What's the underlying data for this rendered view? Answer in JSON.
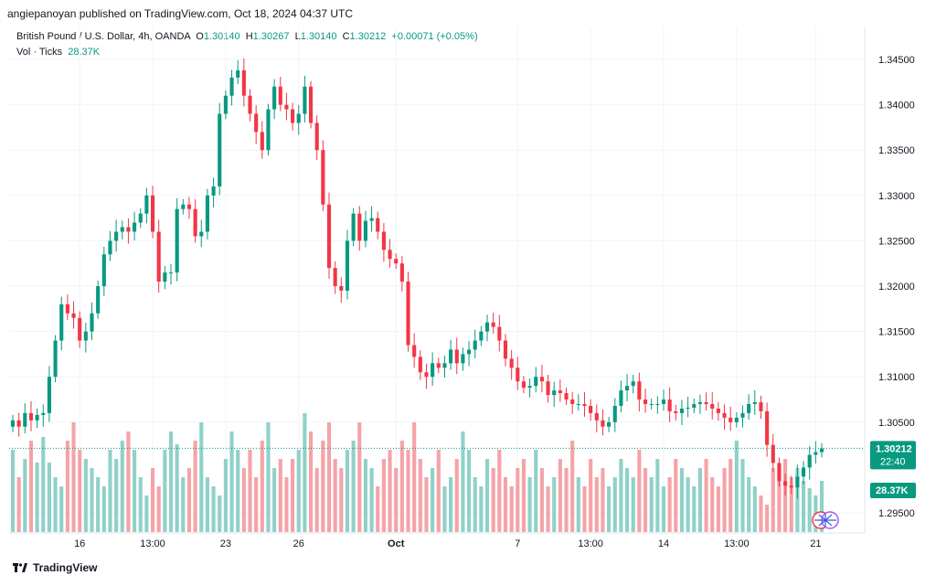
{
  "header": {
    "publisher_line": "angiepanoyan published on TradingView.com, Oct 18, 2024 04:37 UTC"
  },
  "legend": {
    "symbol": "British Pound / U.S. Dollar, 4h, OANDA",
    "o_label": "O",
    "o_value": "1.30140",
    "h_label": "H",
    "h_value": "1.30267",
    "l_label": "L",
    "l_value": "1.30140",
    "c_label": "C",
    "c_value": "1.30212",
    "change": "+0.00071 (+0.05%)",
    "vol_label": "Vol · Ticks",
    "vol_value": "28.37K"
  },
  "colors": {
    "up": "#089981",
    "down": "#f23645",
    "up_vol": "#8fd1c9",
    "down_vol": "#f5a3a8",
    "grid": "#f0f3fa"
  },
  "chart_data": {
    "type": "candlestick",
    "title": "British Pound / U.S. Dollar, 4h, OANDA",
    "ylim": [
      1.2925,
      1.3475
    ],
    "y_ticks": [
      "1.34500",
      "1.34000",
      "1.33500",
      "1.33000",
      "1.32500",
      "1.32000",
      "1.31500",
      "1.31000",
      "1.30500",
      "1.29500"
    ],
    "y_tick_values": [
      1.345,
      1.34,
      1.335,
      1.33,
      1.325,
      1.32,
      1.315,
      1.31,
      1.305,
      1.295
    ],
    "x_ticks": [
      "16",
      "13:00",
      "23",
      "26",
      "Oct",
      "7",
      "13:00",
      "14",
      "13:00",
      "21"
    ],
    "x_tick_bars": [
      11,
      23,
      35,
      47,
      63,
      83,
      95,
      107,
      119,
      132
    ],
    "price_label": "1.30212",
    "countdown": "22:40",
    "volume_label": "28.37K",
    "closes": [
      1.3052,
      1.3045,
      1.306,
      1.3052,
      1.3058,
      1.306,
      1.31,
      1.314,
      1.318,
      1.317,
      1.3165,
      1.314,
      1.315,
      1.317,
      1.32,
      1.3235,
      1.325,
      1.326,
      1.3265,
      1.326,
      1.327,
      1.328,
      1.33,
      1.326,
      1.3205,
      1.3215,
      1.3215,
      1.3285,
      1.329,
      1.3285,
      1.3255,
      1.326,
      1.33,
      1.331,
      1.339,
      1.341,
      1.343,
      1.3438,
      1.341,
      1.339,
      1.337,
      1.335,
      1.3395,
      1.342,
      1.34,
      1.3395,
      1.338,
      1.339,
      1.342,
      1.338,
      1.335,
      1.329,
      1.322,
      1.32,
      1.3195,
      1.325,
      1.328,
      1.325,
      1.3272,
      1.3275,
      1.326,
      1.324,
      1.323,
      1.3225,
      1.3205,
      1.3135,
      1.3122,
      1.3105,
      1.31,
      1.3115,
      1.311,
      1.3115,
      1.313,
      1.3115,
      1.3125,
      1.313,
      1.314,
      1.315,
      1.316,
      1.3155,
      1.314,
      1.312,
      1.311,
      1.3095,
      1.3088,
      1.309,
      1.31,
      1.3095,
      1.308,
      1.3085,
      1.3082,
      1.3075,
      1.307,
      1.307,
      1.3068,
      1.306,
      1.3052,
      1.3045,
      1.305,
      1.3068,
      1.3085,
      1.309,
      1.3095,
      1.3075,
      1.307,
      1.307,
      1.307,
      1.3075,
      1.3062,
      1.306,
      1.3065,
      1.3066,
      1.307,
      1.3072,
      1.307,
      1.3065,
      1.306,
      1.3055,
      1.305,
      1.3055,
      1.306,
      1.307,
      1.3072,
      1.3062,
      1.3025,
      1.3005,
      1.2985,
      1.298,
      1.2978,
      1.299,
      1.3,
      1.3014,
      1.3017,
      1.3021
    ],
    "volumes": [
      45,
      30,
      40,
      50,
      38,
      52,
      38,
      30,
      25,
      50,
      60,
      45,
      40,
      35,
      30,
      25,
      45,
      40,
      50,
      55,
      45,
      30,
      20,
      35,
      25,
      45,
      55,
      48,
      30,
      35,
      50,
      60,
      30,
      25,
      20,
      40,
      55,
      45,
      35,
      45,
      30,
      50,
      60,
      35,
      40,
      30,
      40,
      45,
      65,
      55,
      35,
      50,
      60,
      40,
      35,
      45,
      50,
      60,
      40,
      35,
      25,
      40,
      45,
      35,
      50,
      45,
      60,
      40,
      30,
      35,
      45,
      25,
      30,
      40,
      55,
      45,
      30,
      25,
      40,
      35,
      45,
      30,
      25,
      35,
      40,
      30,
      45,
      35,
      25,
      30,
      40,
      35,
      50,
      30,
      25,
      40,
      30,
      35,
      25,
      30,
      40,
      35,
      30,
      45,
      35,
      30,
      40,
      25,
      30,
      40,
      35,
      30,
      25,
      35,
      40,
      30,
      25,
      35,
      40,
      50,
      40,
      30,
      25,
      20,
      15,
      35,
      30,
      40,
      30,
      35,
      28,
      24,
      20,
      28
    ]
  }
}
